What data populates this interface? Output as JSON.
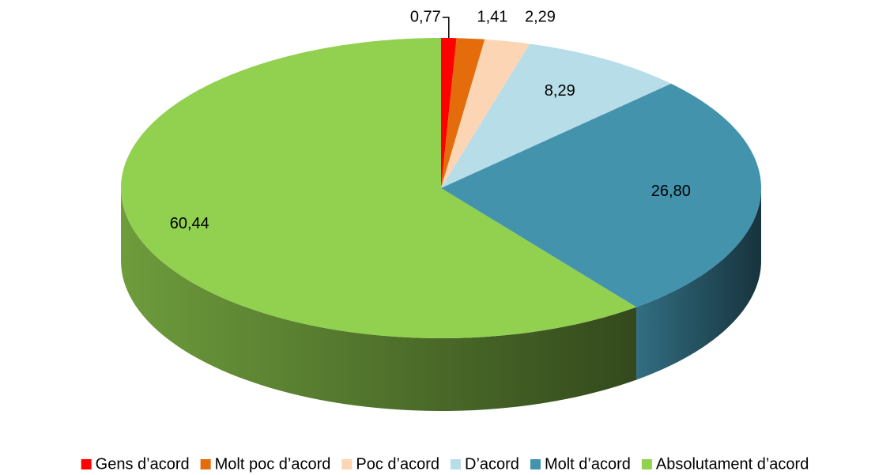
{
  "chart_data": {
    "type": "pie",
    "categories": [
      "Gens d’acord",
      "Molt poc d’acord",
      "Poc d’acord",
      "D’acord",
      "Molt d’acord",
      "Absolutament d’acord"
    ],
    "values": [
      0.77,
      1.41,
      2.29,
      8.29,
      26.8,
      60.44
    ],
    "value_labels": [
      "0,77",
      "1,41",
      "2,29",
      "8,29",
      "26,80",
      "60,44"
    ],
    "colors": [
      "#ff0000",
      "#e46c0a",
      "#fcd5b5",
      "#b7dde8",
      "#4393ad",
      "#92d050"
    ],
    "legend": "bottom"
  }
}
